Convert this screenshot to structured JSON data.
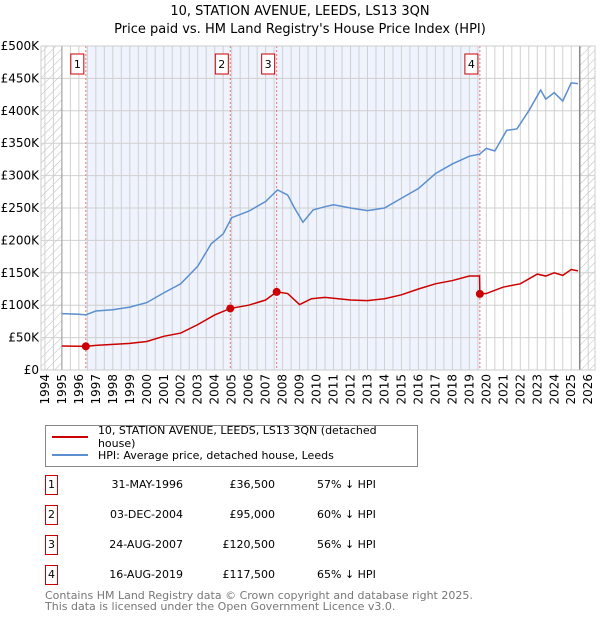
{
  "chart_data": {
    "type": "line",
    "title": "10, STATION AVENUE, LEEDS, LS13 3QN",
    "subtitle": "Price paid vs. HM Land Registry's House Price Index (HPI)",
    "xlim": [
      1994,
      2026
    ],
    "ylim": [
      0,
      500000
    ],
    "x_ticks": [
      "1994",
      "1995",
      "1996",
      "1997",
      "1998",
      "1999",
      "2000",
      "2001",
      "2002",
      "2003",
      "2004",
      "2005",
      "2006",
      "2007",
      "2008",
      "2009",
      "2010",
      "2011",
      "2012",
      "2013",
      "2014",
      "2015",
      "2016",
      "2017",
      "2018",
      "2019",
      "2020",
      "2021",
      "2022",
      "2023",
      "2024",
      "2025",
      "2026"
    ],
    "y_ticks": [
      {
        "v": 0,
        "label": "£0"
      },
      {
        "v": 50000,
        "label": "£50K"
      },
      {
        "v": 100000,
        "label": "£100K"
      },
      {
        "v": 150000,
        "label": "£150K"
      },
      {
        "v": 200000,
        "label": "£200K"
      },
      {
        "v": 250000,
        "label": "£250K"
      },
      {
        "v": 300000,
        "label": "£300K"
      },
      {
        "v": 350000,
        "label": "£350K"
      },
      {
        "v": 400000,
        "label": "£400K"
      },
      {
        "v": 450000,
        "label": "£450K"
      },
      {
        "v": 500000,
        "label": "£500K"
      }
    ],
    "grid": true,
    "series": [
      {
        "name": "10, STATION AVENUE, LEEDS, LS13 3QN (detached house)",
        "color": "#cc0000",
        "x": [
          1995,
          1996.4,
          1997,
          1999,
          2000,
          2001,
          2002,
          2003,
          2004,
          2004.92,
          2006,
          2007,
          2007.65,
          2008.3,
          2009,
          2009.7,
          2010.5,
          2012,
          2013,
          2014,
          2015,
          2016,
          2017,
          2018,
          2019,
          2019.6,
          2019.62,
          2020,
          2021,
          2022,
          2023,
          2023.5,
          2024,
          2024.5,
          2025,
          2025.4
        ],
        "y": [
          37000,
          36500,
          38000,
          41000,
          44000,
          52000,
          57000,
          70000,
          85000,
          95000,
          100000,
          108000,
          120500,
          118000,
          101000,
          110000,
          112000,
          108000,
          107000,
          110000,
          116000,
          125000,
          133000,
          138000,
          145000,
          145000,
          117500,
          118000,
          128000,
          133000,
          148000,
          145000,
          150000,
          146000,
          155000,
          153000
        ]
      },
      {
        "name": "HPI: Average price, detached house, Leeds",
        "color": "#5b8fd0",
        "x": [
          1995,
          1996,
          1996.4,
          1997,
          1998,
          1999,
          2000,
          2001,
          2002,
          2003,
          2003.8,
          2004.5,
          2005,
          2006,
          2007,
          2007.7,
          2008.3,
          2008.7,
          2009.2,
          2009.8,
          2010.5,
          2011,
          2012,
          2013,
          2014,
          2015,
          2016,
          2017,
          2018,
          2019,
          2019.6,
          2020,
          2020.5,
          2021.2,
          2021.8,
          2022.5,
          2023.2,
          2023.5,
          2024,
          2024.5,
          2025,
          2025.4
        ],
        "y": [
          87000,
          86000,
          85000,
          91000,
          93000,
          97000,
          104000,
          119000,
          133000,
          160000,
          195000,
          210000,
          235000,
          245000,
          260000,
          278000,
          270000,
          250000,
          228000,
          247000,
          252000,
          255000,
          250000,
          246000,
          250000,
          265000,
          280000,
          303000,
          318000,
          330000,
          333000,
          342000,
          338000,
          370000,
          372000,
          400000,
          432000,
          418000,
          428000,
          415000,
          443000,
          442000
        ]
      }
    ],
    "sales": [
      {
        "n": "1",
        "x": 1996.41,
        "y": 36500,
        "date": "31-MAY-1996",
        "price": "£36,500",
        "hpi": "57% ↓ HPI"
      },
      {
        "n": "2",
        "x": 2004.92,
        "y": 95000,
        "date": "03-DEC-2004",
        "price": "£95,000",
        "hpi": "60% ↓ HPI"
      },
      {
        "n": "3",
        "x": 2007.65,
        "y": 120500,
        "date": "24-AUG-2007",
        "price": "£120,500",
        "hpi": "56% ↓ HPI"
      },
      {
        "n": "4",
        "x": 2019.62,
        "y": 117500,
        "date": "16-AUG-2019",
        "price": "£117,500",
        "hpi": "65% ↓ HPI"
      }
    ],
    "shaded_range": [
      1996.41,
      2019.62
    ],
    "hatched_before": 1995,
    "hatched_after": 2025.5
  },
  "footer": [
    "Contains HM Land Registry data © Crown copyright and database right 2025.",
    "This data is licensed under the Open Government Licence v3.0."
  ]
}
